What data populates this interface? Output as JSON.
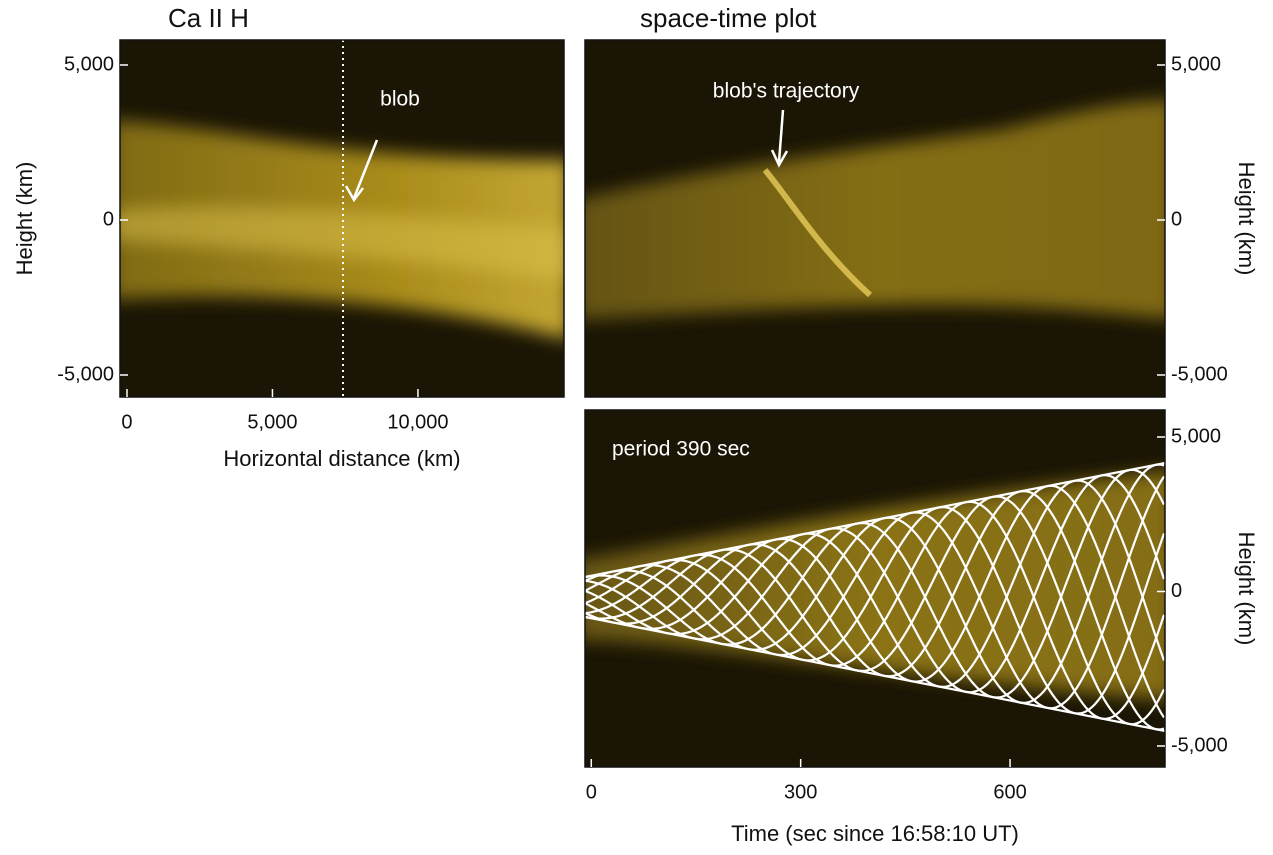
{
  "chart_data": [
    {
      "type": "image",
      "title": "Ca II H",
      "xlabel": "Horizontal distance (km)",
      "ylabel": "Height (km)",
      "xlim": [
        -240,
        15020
      ],
      "xticks": [
        0,
        {
          "value": 5000,
          "label": "5,000"
        },
        {
          "value": 10000,
          "label": "10,000"
        }
      ],
      "ylim": [
        -5710,
        5806
      ],
      "yticks": [
        {
          "value": -5000,
          "label": "-5,000"
        },
        0,
        {
          "value": 5000,
          "label": "5,000"
        }
      ],
      "annotation": "blob"
    },
    {
      "type": "image",
      "title": "space-time plot",
      "ylabel": "Height (km)",
      "ylim": [
        -5710,
        5806
      ],
      "yticks": [
        {
          "value": -5000,
          "label": "-5,000"
        },
        0,
        {
          "value": 5000,
          "label": "5,000"
        }
      ],
      "annotation": "blob's trajectory"
    },
    {
      "type": "image",
      "xlabel": "Time (sec since 16:58:10 UT)",
      "ylabel": "Height (km)",
      "xlim": [
        -9,
        822
      ],
      "xticks": [
        0,
        300,
        600
      ],
      "ylim": [
        -5680,
        5874
      ],
      "yticks": [
        {
          "value": -5000,
          "label": "-5,000"
        },
        0,
        {
          "value": 5000,
          "label": "5,000"
        }
      ],
      "annotation": "period  390 sec"
    }
  ]
}
